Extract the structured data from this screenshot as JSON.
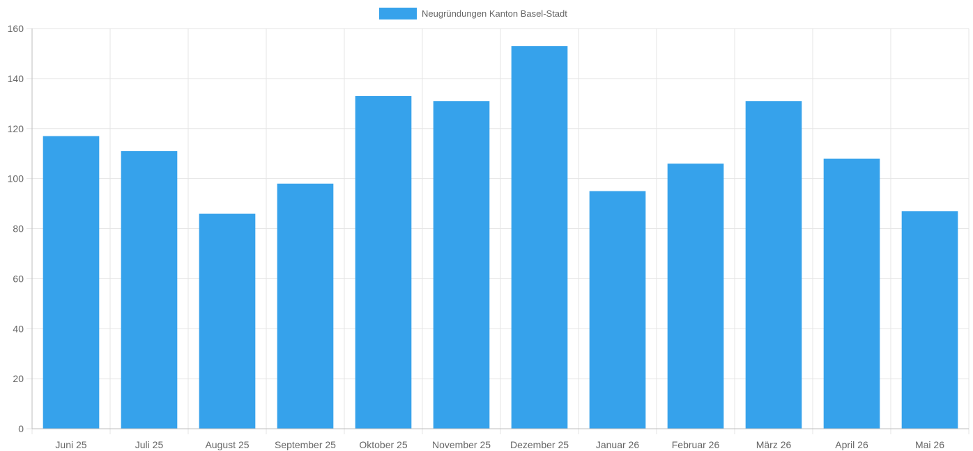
{
  "chart_data": {
    "type": "bar",
    "categories": [
      "Juni 25",
      "Juli 25",
      "August 25",
      "September 25",
      "Oktober 25",
      "November 25",
      "Dezember 25",
      "Januar 26",
      "Februar 26",
      "März 26",
      "April 26",
      "Mai 26"
    ],
    "series": [
      {
        "name": "Neugründungen Kanton Basel-Stadt",
        "values": [
          117,
          111,
          86,
          98,
          133,
          131,
          153,
          95,
          106,
          131,
          108,
          87
        ],
        "color": "#36a2eb"
      }
    ],
    "yticks": [
      0,
      20,
      40,
      60,
      80,
      100,
      120,
      140,
      160
    ],
    "ylim": [
      0,
      160
    ],
    "grid": true,
    "legend_position": "top-center",
    "colors": {
      "bar": "#36a2eb",
      "grid": "#e5e5e5",
      "axis": "#bdbdbd",
      "text": "#666666"
    }
  }
}
